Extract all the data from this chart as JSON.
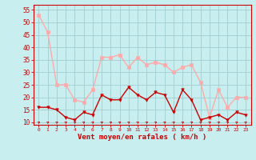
{
  "title": "",
  "xlabel": "Vent moyen/en rafales ( km/h )",
  "x_values": [
    0,
    1,
    2,
    3,
    4,
    5,
    6,
    7,
    8,
    9,
    10,
    11,
    12,
    13,
    14,
    15,
    16,
    17,
    18,
    19,
    20,
    21,
    22,
    23
  ],
  "wind_avg": [
    16,
    16,
    15,
    12,
    11,
    14,
    13,
    21,
    19,
    19,
    24,
    21,
    19,
    22,
    21,
    14,
    23,
    19,
    11,
    12,
    13,
    11,
    14,
    13
  ],
  "wind_gust": [
    53,
    46,
    25,
    25,
    19,
    18,
    23,
    36,
    36,
    37,
    32,
    36,
    33,
    34,
    33,
    30,
    32,
    33,
    26,
    12,
    23,
    16,
    20,
    20
  ],
  "avg_color": "#cc0000",
  "gust_color": "#ffaaaa",
  "bg_color": "#c8eef0",
  "grid_color": "#a0ccd0",
  "axis_color": "#cc0000",
  "tick_color": "#cc0000",
  "ylim": [
    9,
    57
  ],
  "yticks": [
    10,
    15,
    20,
    25,
    30,
    35,
    40,
    45,
    50,
    55
  ],
  "marker_size": 2.5,
  "line_width": 1.0
}
